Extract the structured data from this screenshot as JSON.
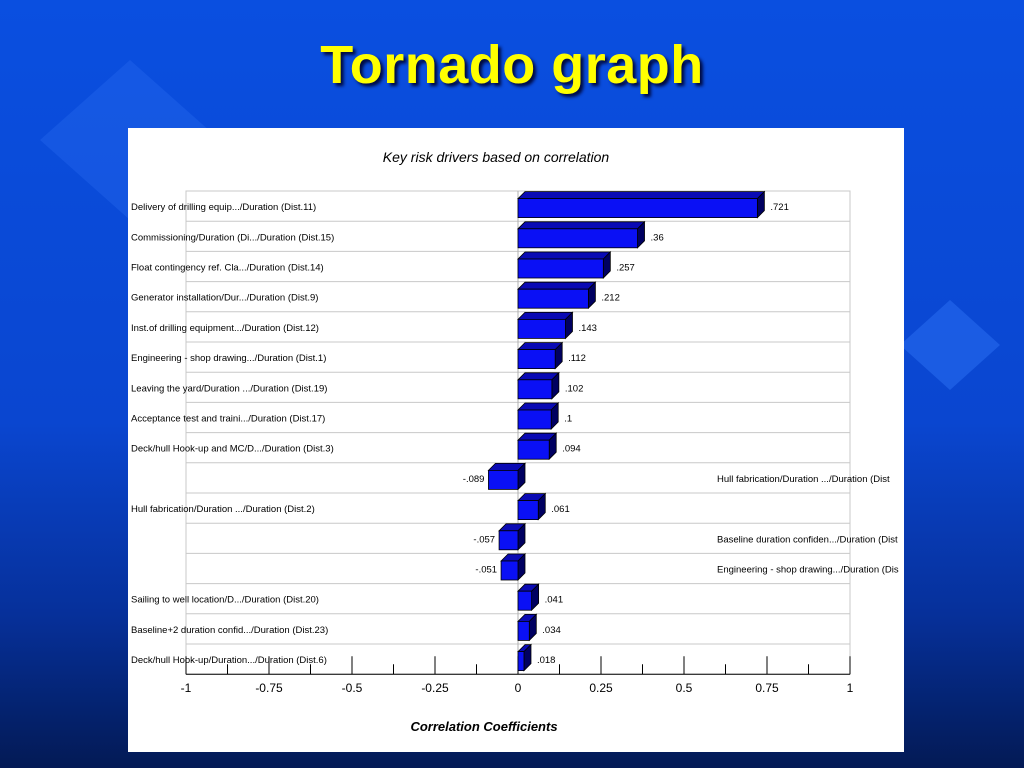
{
  "slide": {
    "title": "Tornado graph"
  },
  "colors": {
    "background": "#0a4fe0",
    "title": "#ffff00",
    "bar_front": "#0a10f5",
    "bar_top": "#0a0ab4",
    "bar_side": "#000060"
  },
  "chart_data": {
    "type": "bar",
    "orientation": "horizontal",
    "title": "Key risk drivers based on correlation",
    "xlabel": "Correlation Coefficients",
    "ylabel": "",
    "xlim": [
      -1,
      1
    ],
    "xticks": [
      "-1",
      "-0.75",
      "-0.5",
      "-0.25",
      "0",
      "0.25",
      "0.5",
      "0.75",
      "1"
    ],
    "bars": [
      {
        "label": "Delivery of drilling equip.../Duration (Dist.11)",
        "value": 0.721,
        "value_label": ".721"
      },
      {
        "label": "Commissioning/Duration (Di.../Duration (Dist.15)",
        "value": 0.36,
        "value_label": ".36"
      },
      {
        "label": "Float contingency ref. Cla.../Duration (Dist.14)",
        "value": 0.257,
        "value_label": ".257"
      },
      {
        "label": "Generator installation/Dur.../Duration (Dist.9)",
        "value": 0.212,
        "value_label": ".212"
      },
      {
        "label": "Inst.of drilling equipment.../Duration (Dist.12)",
        "value": 0.143,
        "value_label": ".143"
      },
      {
        "label": "Engineering - shop drawing.../Duration (Dist.1)",
        "value": 0.112,
        "value_label": ".112"
      },
      {
        "label": "Leaving the yard/Duration .../Duration (Dist.19)",
        "value": 0.102,
        "value_label": ".102"
      },
      {
        "label": "Acceptance test and traini.../Duration (Dist.17)",
        "value": 0.1,
        "value_label": ".1"
      },
      {
        "label": "Deck/hull Hook-up and MC/D.../Duration (Dist.3)",
        "value": 0.094,
        "value_label": ".094"
      },
      {
        "label": "Hull fabrication/Duration .../Duration (Dist",
        "value": -0.089,
        "value_label": "-.089"
      },
      {
        "label": "Hull fabrication/Duration .../Duration (Dist.2)",
        "value": 0.061,
        "value_label": ".061"
      },
      {
        "label": "Baseline duration confiden.../Duration (Dist",
        "value": -0.057,
        "value_label": "-.057"
      },
      {
        "label": "Engineering - shop drawing.../Duration (Dis",
        "value": -0.051,
        "value_label": "-.051"
      },
      {
        "label": "Sailing to well location/D.../Duration (Dist.20)",
        "value": 0.041,
        "value_label": ".041"
      },
      {
        "label": "Baseline+2 duration confid.../Duration (Dist.23)",
        "value": 0.034,
        "value_label": ".034"
      },
      {
        "label": "Deck/hull Hook-up/Duration.../Duration (Dist.6)",
        "value": 0.018,
        "value_label": ".018"
      }
    ],
    "grid": true,
    "legend": "none"
  }
}
